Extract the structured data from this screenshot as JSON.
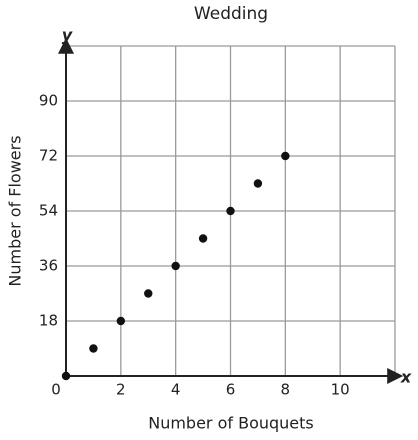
{
  "chart_data": {
    "type": "scatter",
    "title": "Wedding",
    "x_label": "Number of Bouquets",
    "y_label": "Number of Flowers",
    "x_axis_name": "x",
    "y_axis_name": "y",
    "x": [
      0,
      1,
      2,
      3,
      4,
      5,
      6,
      7,
      8
    ],
    "values": [
      0,
      9,
      18,
      27,
      36,
      45,
      54,
      63,
      72
    ],
    "color": "#111111",
    "xlim": [
      0,
      12
    ],
    "ylim": [
      0,
      108
    ],
    "xticks": [
      0,
      2,
      4,
      6,
      8,
      10
    ],
    "yticks": [
      18,
      36,
      54,
      72,
      90
    ],
    "grid": true
  }
}
